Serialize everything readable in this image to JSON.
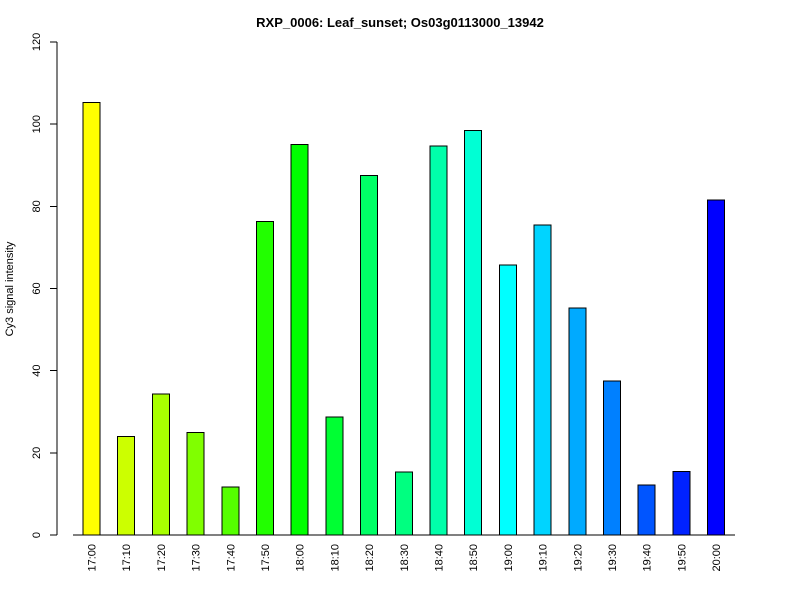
{
  "chart_data": {
    "type": "bar",
    "title": "RXP_0006: Leaf_sunset; Os03g0113000_13942",
    "xlabel": "",
    "ylabel": "Cy3 signal intensity",
    "ylim": [
      0,
      120
    ],
    "yticks": [
      0,
      20,
      40,
      60,
      80,
      100,
      120
    ],
    "categories": [
      "17:00",
      "17:10",
      "17:20",
      "17:30",
      "17:40",
      "17:50",
      "18:00",
      "18:10",
      "18:20",
      "18:30",
      "18:40",
      "18:50",
      "19:00",
      "19:10",
      "19:20",
      "19:30",
      "19:40",
      "19:50",
      "20:00"
    ],
    "values": [
      105.3,
      24.0,
      34.3,
      25.0,
      11.7,
      76.3,
      95.0,
      28.7,
      87.5,
      15.3,
      94.7,
      98.5,
      65.7,
      75.5,
      55.2,
      37.5,
      12.2,
      15.5,
      81.5
    ],
    "colors": [
      "#ffff00",
      "#ccff00",
      "#a8ff00",
      "#80ff00",
      "#55ff00",
      "#22ff00",
      "#00ff00",
      "#00ff33",
      "#00ff66",
      "#00ff80",
      "#00ffaa",
      "#00ffd4",
      "#00ffff",
      "#00d4ff",
      "#00aaff",
      "#0080ff",
      "#0055ff",
      "#0022ff",
      "#0000ff"
    ],
    "grid": false,
    "legend": "none"
  }
}
